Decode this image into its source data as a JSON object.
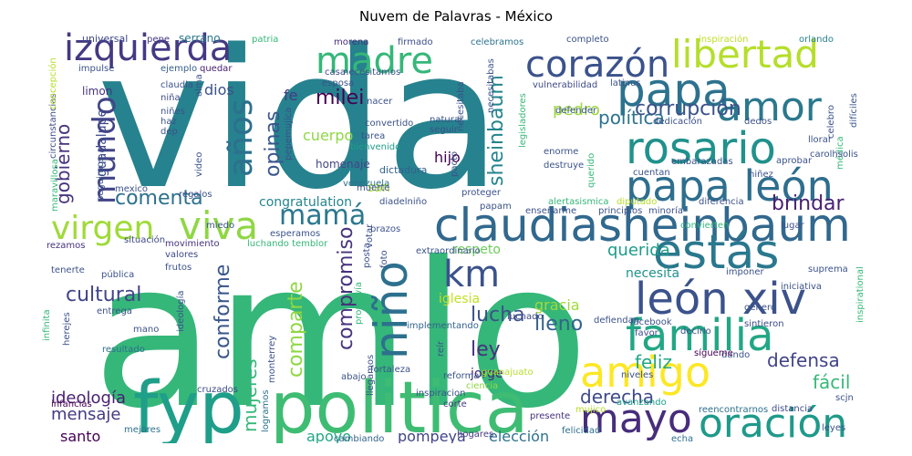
{
  "title": "Nuvem de Palavras - México",
  "words": [
    {
      "text": "vida",
      "color": "#26828e"
    },
    {
      "text": "amlo",
      "color": "#35b779"
    },
    {
      "text": "politica",
      "color": "#3fbc73"
    },
    {
      "text": "fyp",
      "color": "#1f9e89"
    },
    {
      "text": "claudiasheinbaum",
      "color": "#31688e"
    },
    {
      "text": "izquierda",
      "color": "#443983"
    },
    {
      "text": "madre",
      "color": "#35b779"
    },
    {
      "text": "corazón",
      "color": "#3b528b"
    },
    {
      "text": "libertad",
      "color": "#b5de2b"
    },
    {
      "text": "amor",
      "color": "#2a788e"
    },
    {
      "text": "papa",
      "color": "#2c728e"
    },
    {
      "text": "rosario",
      "color": "#21918c"
    },
    {
      "text": "papa león",
      "color": "#2e6e8e"
    },
    {
      "text": "estás",
      "color": "#2a788e"
    },
    {
      "text": "león xiv",
      "color": "#3b528b"
    },
    {
      "text": "familia",
      "color": "#22a785"
    },
    {
      "text": "amigo",
      "color": "#fde725"
    },
    {
      "text": "mayo",
      "color": "#472d7b"
    },
    {
      "text": "oración",
      "color": "#1f9a8a"
    },
    {
      "text": "viva",
      "color": "#8fd744"
    },
    {
      "text": "virgen",
      "color": "#a0da39"
    },
    {
      "text": "mamá",
      "color": "#2a788e"
    },
    {
      "text": "mundo",
      "color": "#414487"
    },
    {
      "text": "años",
      "color": "#2d708e"
    },
    {
      "text": "km",
      "color": "#3b528b"
    },
    {
      "text": "niño",
      "color": "#2d708e"
    },
    {
      "text": "milei",
      "color": "#440154"
    },
    {
      "text": "política",
      "color": "#2c728e"
    },
    {
      "text": "corrupción",
      "color": "#3b528b"
    },
    {
      "text": "sheinbaum",
      "color": "#25848e"
    },
    {
      "text": "pedro",
      "color": "#9bd93c"
    },
    {
      "text": "gobierno",
      "color": "#46327e"
    },
    {
      "text": "comenta",
      "color": "#2d708e"
    },
    {
      "text": "opinas",
      "color": "#39568c"
    },
    {
      "text": "brindar",
      "color": "#482173"
    },
    {
      "text": "cultural",
      "color": "#414487"
    },
    {
      "text": "compromiso",
      "color": "#46337e"
    },
    {
      "text": "conforme",
      "color": "#39568c"
    },
    {
      "text": "comparte",
      "color": "#8fd744"
    },
    {
      "text": "lleno",
      "color": "#33638d"
    },
    {
      "text": "lucha",
      "color": "#3b528b"
    },
    {
      "text": "ley",
      "color": "#46327e"
    },
    {
      "text": "querida",
      "color": "#1e9c89"
    },
    {
      "text": "feliz",
      "color": "#22a785"
    },
    {
      "text": "defensa",
      "color": "#414487"
    },
    {
      "text": "fácil",
      "color": "#37b878"
    },
    {
      "text": "derecha",
      "color": "#3e4a89"
    },
    {
      "text": "mensaje",
      "color": "#443a83"
    },
    {
      "text": "ideología",
      "color": "#481f70"
    },
    {
      "text": "mujeres",
      "color": "#35b779"
    },
    {
      "text": "cuerpo",
      "color": "#8fd744"
    },
    {
      "text": "hijo",
      "color": "#440154"
    },
    {
      "text": "fe",
      "color": "#443a83"
    },
    {
      "text": "dios",
      "color": "#3b528b"
    },
    {
      "text": "apoyo",
      "color": "#22a785"
    },
    {
      "text": "pompeya",
      "color": "#414487"
    },
    {
      "text": "elección",
      "color": "#2d708e"
    },
    {
      "text": "santo",
      "color": "#440154"
    },
    {
      "text": "gracia",
      "color": "#a0da39"
    },
    {
      "text": "respeto",
      "color": "#6ccd5a"
    },
    {
      "text": "necesita",
      "color": "#21918c"
    },
    {
      "text": "iglesia",
      "color": "#c2df23"
    },
    {
      "text": "jorge",
      "color": "#482475"
    },
    {
      "text": "congratulation",
      "color": "#25848e"
    },
    {
      "text": "san",
      "color": "#addc30"
    },
    {
      "text": "homenaje",
      "color": "#404688"
    },
    {
      "text": "venezuela",
      "color": "#2d708e"
    },
    {
      "text": "dictadura",
      "color": "#33638d"
    },
    {
      "text": "guadalupe",
      "color": "#3e4a89"
    },
    {
      "text": "limon",
      "color": "#46327e"
    },
    {
      "text": "serrano",
      "color": "#2a788e"
    },
    {
      "text": "universal",
      "color": "#3e4989"
    },
    {
      "text": "pepe",
      "color": "#443983"
    },
    {
      "text": "patria",
      "color": "#35b779"
    },
    {
      "text": "morena",
      "color": "#472c7a"
    },
    {
      "text": "firmado",
      "color": "#3e4c8a"
    },
    {
      "text": "celebramos",
      "color": "#2c728e"
    },
    {
      "text": "completo",
      "color": "#3b528b"
    },
    {
      "text": "inspiración",
      "color": "#bddf26"
    },
    {
      "text": "orlando",
      "color": "#26828e"
    },
    {
      "text": "impulse",
      "color": "#3b528b"
    },
    {
      "text": "ejemplo",
      "color": "#355f8d"
    },
    {
      "text": "quedar",
      "color": "#482071"
    },
    {
      "text": "casa",
      "color": "#3e4a89"
    },
    {
      "text": "necesitamos",
      "color": "#3b528b"
    },
    {
      "text": "necesitabas",
      "color": "#3b528b"
    },
    {
      "text": "vulnerabilidad",
      "color": "#3e4a89"
    },
    {
      "text": "mejores",
      "color": "#2d708e"
    },
    {
      "text": "infancias",
      "color": "#440154"
    },
    {
      "text": "cruzados",
      "color": "#3e4a89"
    },
    {
      "text": "logramos",
      "color": "#2c728e"
    },
    {
      "text": "hogares",
      "color": "#443a83"
    },
    {
      "text": "cambiando",
      "color": "#33638d"
    },
    {
      "text": "echa",
      "color": "#2d708e"
    },
    {
      "text": "felicidad",
      "color": "#2d708e"
    },
    {
      "text": "reencontrarnos",
      "color": "#2d708e"
    },
    {
      "text": "leyes",
      "color": "#3b528b"
    },
    {
      "text": "scjn",
      "color": "#3b528b"
    },
    {
      "text": "distancia",
      "color": "#3e4a89"
    },
    {
      "text": "avanzando",
      "color": "#1f9e89"
    },
    {
      "text": "corte",
      "color": "#443a83"
    },
    {
      "text": "presente",
      "color": "#46327e"
    },
    {
      "text": "mujico",
      "color": "#b5de2b"
    },
    {
      "text": "niveles",
      "color": "#3b528b"
    },
    {
      "text": "inspiracion",
      "color": "#3b528b"
    },
    {
      "text": "ciencia",
      "color": "#8fd744"
    },
    {
      "text": "reforma",
      "color": "#3b528b"
    },
    {
      "text": "abajo",
      "color": "#3b528b"
    },
    {
      "text": "fortaleza",
      "color": "#3b528b"
    },
    {
      "text": "guanajuato",
      "color": "#b5de2b"
    },
    {
      "text": "dando",
      "color": "#3b528b"
    },
    {
      "text": "sígueme",
      "color": "#440154"
    },
    {
      "text": "favor",
      "color": "#3e4a89"
    },
    {
      "text": "decirlo",
      "color": "#3b528b"
    },
    {
      "text": "sintieron",
      "color": "#3e4a89"
    },
    {
      "text": "facebook",
      "color": "#3b528b"
    },
    {
      "text": "luchado",
      "color": "#3e4a89"
    },
    {
      "text": "defiendan",
      "color": "#3b528b"
    },
    {
      "text": "implementando",
      "color": "#33638d"
    },
    {
      "text": "llegamos",
      "color": "#3b528b"
    },
    {
      "text": "reír",
      "color": "#3b528b"
    },
    {
      "text": "monterrey",
      "color": "#3b528b"
    },
    {
      "text": "promovía",
      "color": "#35b779"
    },
    {
      "text": "ideología",
      "color": "#3b528b"
    },
    {
      "text": "resultado",
      "color": "#2d708e"
    },
    {
      "text": "entrega",
      "color": "#3b528b"
    },
    {
      "text": "mano",
      "color": "#3b528b"
    },
    {
      "text": "herejes",
      "color": "#3b528b"
    },
    {
      "text": "infinita",
      "color": "#35b779"
    },
    {
      "text": "tenerte",
      "color": "#3b528b"
    },
    {
      "text": "pública",
      "color": "#3b528b"
    },
    {
      "text": "frutos",
      "color": "#3b528b"
    },
    {
      "text": "valores",
      "color": "#3e4a89"
    },
    {
      "text": "movimiento",
      "color": "#46327e"
    },
    {
      "text": "rezamos",
      "color": "#46327e"
    },
    {
      "text": "situación",
      "color": "#3e4a89"
    },
    {
      "text": "mexico",
      "color": "#3b528b"
    },
    {
      "text": "maravillosa",
      "color": "#35b779"
    },
    {
      "text": "seguimos",
      "color": "#3b528b"
    },
    {
      "text": "circunstancias",
      "color": "#3e4a89"
    },
    {
      "text": "concepción",
      "color": "#b5de2b"
    },
    {
      "text": "claudia",
      "color": "#3b528b"
    },
    {
      "text": "niña",
      "color": "#3e4a89"
    },
    {
      "text": "niñes",
      "color": "#3b528b"
    },
    {
      "text": "haz",
      "color": "#3b528b"
    },
    {
      "text": "dep",
      "color": "#3b528b"
    },
    {
      "text": "video",
      "color": "#3b528b"
    },
    {
      "text": "regalos",
      "color": "#3b528b"
    },
    {
      "text": "miedo",
      "color": "#3b528b"
    },
    {
      "text": "alma",
      "color": "#3b528b"
    },
    {
      "text": "pepemujica",
      "color": "#3b528b"
    },
    {
      "text": "esposa",
      "color": "#3b528b"
    },
    {
      "text": "nacer",
      "color": "#3b528b"
    },
    {
      "text": "convertido",
      "color": "#3b528b"
    },
    {
      "text": "bienvenido",
      "color": "#1f9e89"
    },
    {
      "text": "tarea",
      "color": "#3b528b"
    },
    {
      "text": "natural",
      "color": "#3b528b"
    },
    {
      "text": "seguir",
      "color": "#3b528b"
    },
    {
      "text": "muerte",
      "color": "#3b528b"
    },
    {
      "text": "pacto",
      "color": "#3b528b"
    },
    {
      "text": "necesitaba",
      "color": "#3b528b"
    },
    {
      "text": "legisladores",
      "color": "#35b779"
    },
    {
      "text": "latinus",
      "color": "#3b528b"
    },
    {
      "text": "defender",
      "color": "#3b528b"
    },
    {
      "text": "dedicación",
      "color": "#3b528b"
    },
    {
      "text": "dedos",
      "color": "#3b528b"
    },
    {
      "text": "celebro",
      "color": "#3b528b"
    },
    {
      "text": "médica",
      "color": "#35b779"
    },
    {
      "text": "difíciles",
      "color": "#3b528b"
    },
    {
      "text": "carolhsolis",
      "color": "#3b528b"
    },
    {
      "text": "llorar",
      "color": "#3b528b"
    },
    {
      "text": "aprobar",
      "color": "#3b528b"
    },
    {
      "text": "querido",
      "color": "#35b779"
    },
    {
      "text": "enorme",
      "color": "#3b528b"
    },
    {
      "text": "destruye",
      "color": "#3b528b"
    },
    {
      "text": "cuentan",
      "color": "#3b528b"
    },
    {
      "text": "embarazadas",
      "color": "#3b528b"
    },
    {
      "text": "niñez",
      "color": "#3b528b"
    },
    {
      "text": "diputado",
      "color": "#b5de2b"
    },
    {
      "text": "diferencia",
      "color": "#3b528b"
    },
    {
      "text": "minoría",
      "color": "#3b528b"
    },
    {
      "text": "principios",
      "color": "#3b528b"
    },
    {
      "text": "alertasismica",
      "color": "#35b779"
    },
    {
      "text": "papam",
      "color": "#3b528b"
    },
    {
      "text": "proteger",
      "color": "#3b528b"
    },
    {
      "text": "diadelniño",
      "color": "#3b528b"
    },
    {
      "text": "enseñarme",
      "color": "#3b528b"
    },
    {
      "text": "brazos",
      "color": "#3b528b"
    },
    {
      "text": "votar",
      "color": "#3b528b"
    },
    {
      "text": "posta",
      "color": "#3b528b"
    },
    {
      "text": "foto",
      "color": "#3b528b"
    },
    {
      "text": "extraordinario",
      "color": "#3b528b"
    },
    {
      "text": "convierten",
      "color": "#35b779"
    },
    {
      "text": "lugar",
      "color": "#3b528b"
    },
    {
      "text": "esperamos",
      "color": "#3b528b"
    },
    {
      "text": "luchando temblor",
      "color": "#35b779"
    },
    {
      "text": "imponer",
      "color": "#3b528b"
    },
    {
      "text": "iniciativa",
      "color": "#3b528b"
    },
    {
      "text": "género",
      "color": "#3b528b"
    },
    {
      "text": "suprema",
      "color": "#3b528b"
    },
    {
      "text": "inspirational",
      "color": "#35b779"
    }
  ]
}
